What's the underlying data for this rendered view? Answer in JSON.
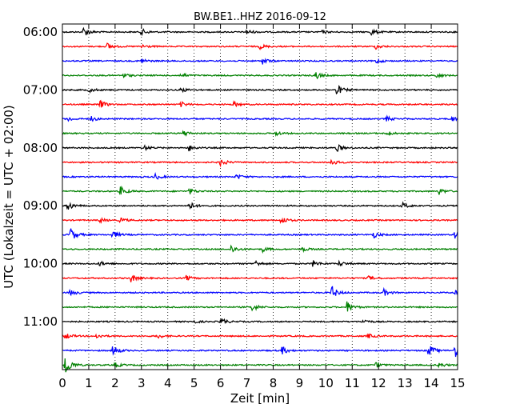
{
  "chart_data": {
    "type": "line",
    "title": "BW.BE1..HHZ 2016-09-12",
    "xlabel": "Zeit  [min]",
    "ylabel": "UTC (Lokalzeit = UTC + 02:00)",
    "xlim": [
      0,
      15
    ],
    "x_ticks": [
      "0",
      "1",
      "2",
      "3",
      "4",
      "5",
      "6",
      "7",
      "8",
      "9",
      "10",
      "11",
      "12",
      "13",
      "14",
      "15"
    ],
    "y_tick_labels": [
      "06:00",
      "07:00",
      "08:00",
      "09:00",
      "10:00",
      "11:00"
    ],
    "grid": "vertical dotted",
    "trace_colors": [
      "#000000",
      "#ff0000",
      "#0000ff",
      "#008000"
    ],
    "series": [
      {
        "start": "06:00",
        "color": "#000000",
        "events": [
          {
            "t": 0.8,
            "a": 6
          },
          {
            "t": 3.0,
            "a": 4
          },
          {
            "t": 7.0,
            "a": 3
          },
          {
            "t": 9.8,
            "a": 2
          },
          {
            "t": 11.7,
            "a": 4
          }
        ]
      },
      {
        "start": "06:15",
        "color": "#ff0000",
        "events": [
          {
            "t": 1.7,
            "a": 4
          },
          {
            "t": 3.0,
            "a": 3
          },
          {
            "t": 7.5,
            "a": 3
          },
          {
            "t": 11.9,
            "a": 3
          }
        ]
      },
      {
        "start": "06:30",
        "color": "#0000ff",
        "events": [
          {
            "t": 3.0,
            "a": 3
          },
          {
            "t": 7.6,
            "a": 4
          },
          {
            "t": 11.9,
            "a": 3
          }
        ]
      },
      {
        "start": "06:45",
        "color": "#008000",
        "events": [
          {
            "t": 2.3,
            "a": 3
          },
          {
            "t": 4.5,
            "a": 3
          },
          {
            "t": 9.6,
            "a": 5
          },
          {
            "t": 14.2,
            "a": 3
          }
        ]
      },
      {
        "start": "07:00",
        "color": "#000000",
        "events": [
          {
            "t": 1.0,
            "a": 3
          },
          {
            "t": 4.5,
            "a": 3
          },
          {
            "t": 10.4,
            "a": 7
          }
        ]
      },
      {
        "start": "07:15",
        "color": "#ff0000",
        "events": [
          {
            "t": 1.4,
            "a": 6
          },
          {
            "t": 4.5,
            "a": 3
          },
          {
            "t": 6.5,
            "a": 3
          }
        ]
      },
      {
        "start": "07:30",
        "color": "#0000ff",
        "events": [
          {
            "t": 0.2,
            "a": 3
          },
          {
            "t": 1.1,
            "a": 3
          },
          {
            "t": 12.3,
            "a": 3
          },
          {
            "t": 14.8,
            "a": 3
          }
        ]
      },
      {
        "start": "07:45",
        "color": "#008000",
        "events": [
          {
            "t": 4.6,
            "a": 4
          },
          {
            "t": 8.1,
            "a": 3
          },
          {
            "t": 12.3,
            "a": 3
          }
        ]
      },
      {
        "start": "08:00",
        "color": "#000000",
        "events": [
          {
            "t": 3.1,
            "a": 3
          },
          {
            "t": 4.8,
            "a": 4
          },
          {
            "t": 10.4,
            "a": 5
          }
        ]
      },
      {
        "start": "08:15",
        "color": "#ff0000",
        "events": [
          {
            "t": 6.0,
            "a": 5
          },
          {
            "t": 10.2,
            "a": 4
          }
        ]
      },
      {
        "start": "08:30",
        "color": "#0000ff",
        "events": [
          {
            "t": 3.5,
            "a": 4
          },
          {
            "t": 6.6,
            "a": 3
          }
        ]
      },
      {
        "start": "08:45",
        "color": "#008000",
        "events": [
          {
            "t": 2.2,
            "a": 6
          },
          {
            "t": 4.8,
            "a": 4
          },
          {
            "t": 14.3,
            "a": 4
          }
        ]
      },
      {
        "start": "09:00",
        "color": "#000000",
        "events": [
          {
            "t": 0.2,
            "a": 6
          },
          {
            "t": 4.8,
            "a": 5
          },
          {
            "t": 12.9,
            "a": 4
          }
        ]
      },
      {
        "start": "09:15",
        "color": "#ff0000",
        "events": [
          {
            "t": 1.4,
            "a": 3
          },
          {
            "t": 2.2,
            "a": 3
          },
          {
            "t": 8.3,
            "a": 5
          }
        ]
      },
      {
        "start": "09:30",
        "color": "#0000ff",
        "events": [
          {
            "t": 0.3,
            "a": 9
          },
          {
            "t": 1.9,
            "a": 5
          },
          {
            "t": 11.8,
            "a": 4
          },
          {
            "t": 14.9,
            "a": 5
          }
        ]
      },
      {
        "start": "09:45",
        "color": "#008000",
        "events": [
          {
            "t": 6.4,
            "a": 5
          },
          {
            "t": 7.6,
            "a": 3
          },
          {
            "t": 9.1,
            "a": 3
          }
        ]
      },
      {
        "start": "10:00",
        "color": "#000000",
        "events": [
          {
            "t": 1.4,
            "a": 3
          },
          {
            "t": 7.3,
            "a": 4
          },
          {
            "t": 9.5,
            "a": 4
          },
          {
            "t": 10.5,
            "a": 3
          }
        ]
      },
      {
        "start": "10:15",
        "color": "#ff0000",
        "events": [
          {
            "t": 2.6,
            "a": 5
          },
          {
            "t": 4.7,
            "a": 3
          },
          {
            "t": 11.6,
            "a": 3
          }
        ]
      },
      {
        "start": "10:30",
        "color": "#0000ff",
        "events": [
          {
            "t": 0.3,
            "a": 4
          },
          {
            "t": 10.2,
            "a": 9
          },
          {
            "t": 12.2,
            "a": 4
          },
          {
            "t": 14.9,
            "a": 4
          }
        ]
      },
      {
        "start": "10:45",
        "color": "#008000",
        "events": [
          {
            "t": 7.2,
            "a": 5
          },
          {
            "t": 10.8,
            "a": 7
          }
        ]
      },
      {
        "start": "11:00",
        "color": "#000000",
        "events": [
          {
            "t": 4.9,
            "a": 3
          },
          {
            "t": 6.0,
            "a": 5
          },
          {
            "t": 11.4,
            "a": 3
          }
        ]
      },
      {
        "start": "11:15",
        "color": "#ff0000",
        "events": [
          {
            "t": 0.1,
            "a": 4
          },
          {
            "t": 1.3,
            "a": 3
          },
          {
            "t": 3.6,
            "a": 3
          },
          {
            "t": 11.6,
            "a": 3
          }
        ]
      },
      {
        "start": "11:30",
        "color": "#0000ff",
        "events": [
          {
            "t": 1.9,
            "a": 7
          },
          {
            "t": 8.3,
            "a": 6
          },
          {
            "t": 13.9,
            "a": 8
          },
          {
            "t": 14.9,
            "a": 9
          }
        ]
      },
      {
        "start": "11:45",
        "color": "#008000",
        "events": [
          {
            "t": 0.1,
            "a": 14
          },
          {
            "t": 2.0,
            "a": 3
          },
          {
            "t": 11.9,
            "a": 3
          },
          {
            "t": 14.3,
            "a": 3
          }
        ]
      }
    ]
  }
}
